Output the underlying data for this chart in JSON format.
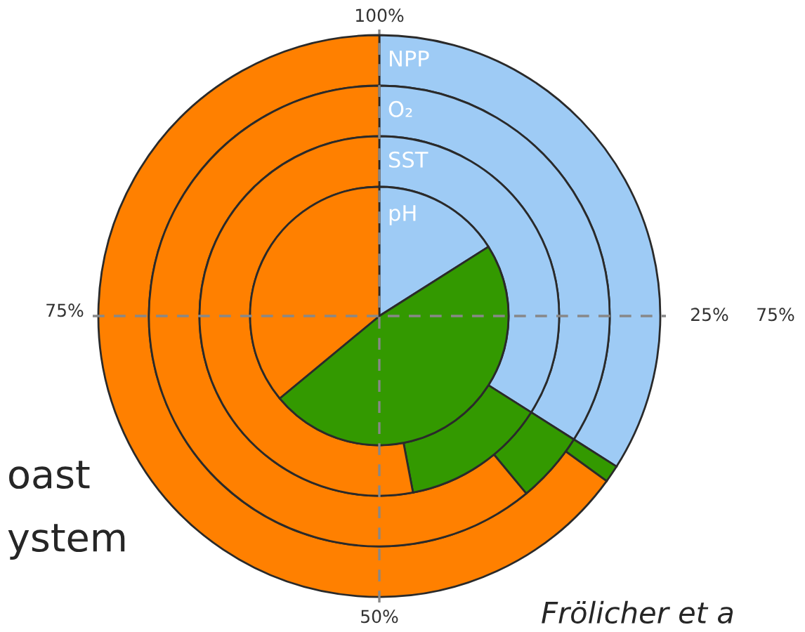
{
  "chart_data": {
    "type": "donut",
    "categories": [
      null,
      null,
      null
    ],
    "colors": [
      "#9ecbf5",
      "#339900",
      "#ff8000"
    ],
    "series": [
      {
        "name": "NPP",
        "values": [
          34,
          1,
          65
        ]
      },
      {
        "name": "O₂",
        "values": [
          34,
          5,
          61
        ]
      },
      {
        "name": "SST",
        "values": [
          34,
          13,
          53
        ]
      },
      {
        "name": "pH",
        "values": [
          16,
          48,
          36
        ]
      }
    ],
    "annotations": [
      "100%",
      "25%",
      "50%",
      "75%",
      "75%",
      "oast",
      "ystem",
      "Frölicher et a"
    ]
  }
}
